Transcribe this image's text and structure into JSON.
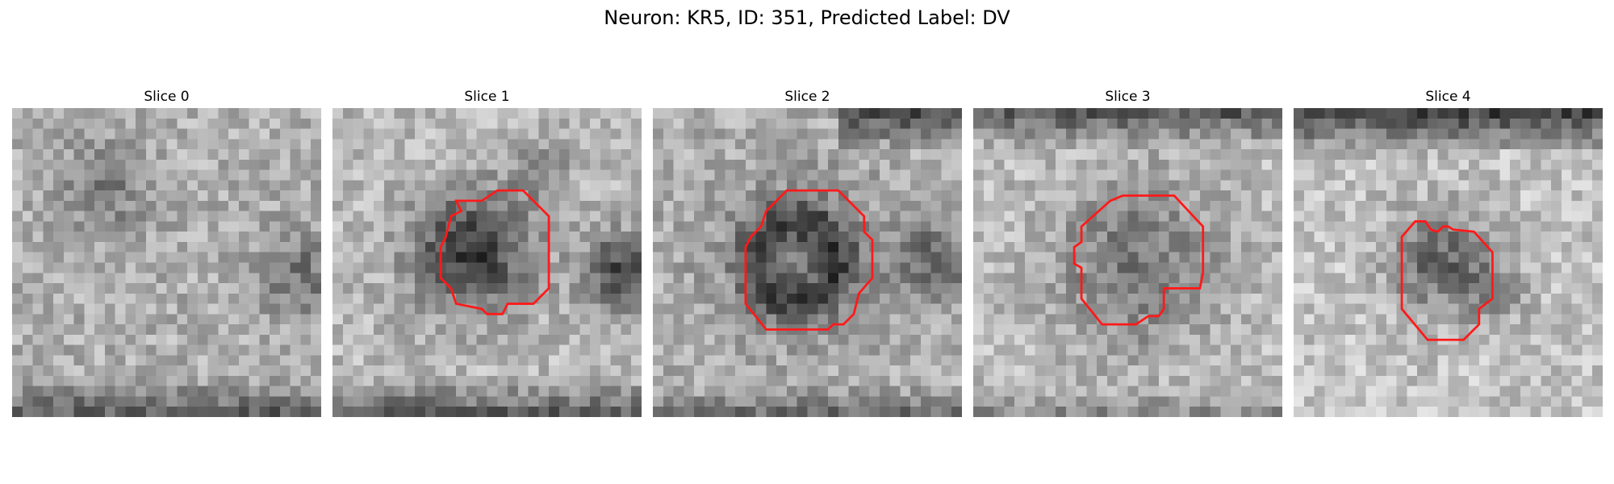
{
  "figure": {
    "title": "Neuron: KR5, ID: 351, Predicted Label: DV",
    "contour_color": "#ff1a1a"
  },
  "panels": [
    {
      "title": "Slice 0",
      "has_contour": false
    },
    {
      "title": "Slice 1",
      "has_contour": true
    },
    {
      "title": "Slice 2",
      "has_contour": true
    },
    {
      "title": "Slice 3",
      "has_contour": true
    },
    {
      "title": "Slice 4",
      "has_contour": true
    }
  ]
}
